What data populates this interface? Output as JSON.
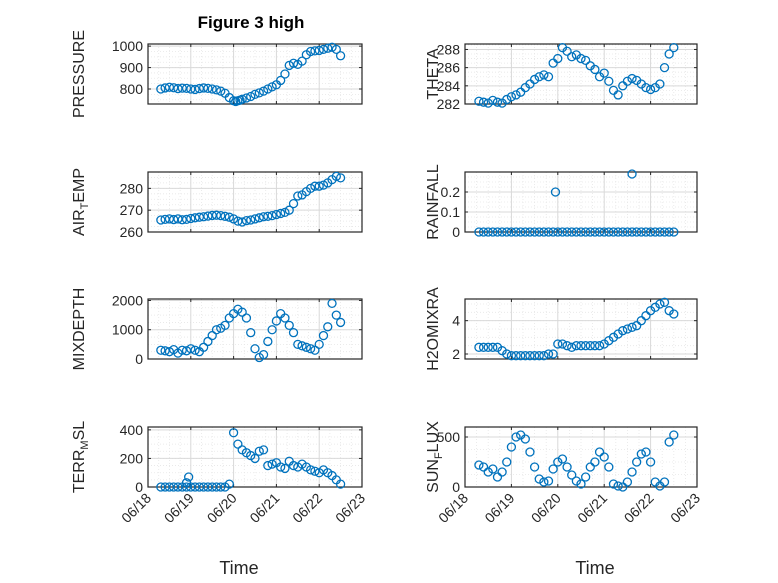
{
  "figure": {
    "title": "Figure 3 high",
    "x_axis_label": "Time",
    "x_tick_labels": [
      "06/18",
      "06/19",
      "06/20",
      "06/21",
      "06/22",
      "06/23"
    ],
    "marker_color": "#0072BD",
    "grid_color": "#d9d9d9"
  },
  "chart_data": [
    {
      "type": "scatter",
      "id": "pressure",
      "ylabel": {
        "main": "PRESSURE",
        "sub": ""
      },
      "xlim": [
        0,
        5
      ],
      "ylim": [
        730,
        1010
      ],
      "yticks": [
        800,
        900,
        1000
      ],
      "ytick_labels": [
        "800",
        "900",
        "1000"
      ],
      "x": [
        0.3,
        0.4,
        0.5,
        0.6,
        0.7,
        0.8,
        0.9,
        1.0,
        1.1,
        1.2,
        1.3,
        1.4,
        1.5,
        1.6,
        1.7,
        1.8,
        1.9,
        2.0,
        2.05,
        2.1,
        2.15,
        2.2,
        2.3,
        2.4,
        2.5,
        2.6,
        2.7,
        2.8,
        2.9,
        3.0,
        3.1,
        3.2,
        3.3,
        3.4,
        3.5,
        3.6,
        3.7,
        3.8,
        3.9,
        4.0,
        4.1,
        4.2,
        4.3,
        4.4,
        4.5
      ],
      "y": [
        800,
        805,
        808,
        806,
        802,
        804,
        803,
        800,
        798,
        802,
        805,
        803,
        800,
        796,
        790,
        780,
        760,
        745,
        742,
        745,
        748,
        752,
        758,
        765,
        775,
        782,
        790,
        800,
        810,
        820,
        840,
        870,
        910,
        920,
        915,
        930,
        960,
        975,
        978,
        980,
        985,
        990,
        995,
        985,
        955
      ]
    },
    {
      "type": "scatter",
      "id": "theta",
      "ylabel": {
        "main": "THETA",
        "sub": ""
      },
      "xlim": [
        0,
        5
      ],
      "ylim": [
        282,
        288.6
      ],
      "yticks": [
        282,
        284,
        286,
        288
      ],
      "ytick_labels": [
        "282",
        "284",
        "286",
        "288"
      ],
      "x": [
        0.3,
        0.4,
        0.5,
        0.6,
        0.7,
        0.8,
        0.9,
        1.0,
        1.1,
        1.2,
        1.3,
        1.4,
        1.5,
        1.6,
        1.7,
        1.8,
        1.9,
        2.0,
        2.1,
        2.2,
        2.3,
        2.4,
        2.5,
        2.6,
        2.7,
        2.8,
        2.9,
        3.0,
        3.1,
        3.2,
        3.3,
        3.4,
        3.5,
        3.6,
        3.7,
        3.8,
        3.9,
        4.0,
        4.1,
        4.2,
        4.3,
        4.4,
        4.5
      ],
      "y": [
        282.3,
        282.2,
        282.1,
        282.4,
        282.2,
        282.1,
        282.5,
        282.8,
        283.0,
        283.3,
        283.8,
        284.2,
        284.7,
        285.0,
        285.2,
        285.0,
        286.5,
        287.0,
        288.2,
        287.8,
        287.2,
        287.4,
        287.0,
        286.8,
        286.2,
        285.8,
        285.0,
        285.4,
        284.5,
        283.5,
        283.0,
        284.0,
        284.5,
        284.8,
        284.6,
        284.2,
        283.8,
        283.6,
        283.8,
        284.2,
        286.0,
        287.5,
        288.2
      ]
    },
    {
      "type": "scatter",
      "id": "air_temp",
      "ylabel": {
        "main": "AIR",
        "sub": "T",
        "tail": "EMP"
      },
      "xlim": [
        0,
        5
      ],
      "ylim": [
        260,
        287.5
      ],
      "yticks": [
        260,
        270,
        280
      ],
      "ytick_labels": [
        "260",
        "270",
        "280"
      ],
      "x": [
        0.3,
        0.4,
        0.5,
        0.6,
        0.7,
        0.8,
        0.9,
        1.0,
        1.1,
        1.2,
        1.3,
        1.4,
        1.5,
        1.6,
        1.7,
        1.8,
        1.9,
        2.0,
        2.1,
        2.2,
        2.3,
        2.4,
        2.5,
        2.6,
        2.7,
        2.8,
        2.9,
        3.0,
        3.1,
        3.2,
        3.3,
        3.4,
        3.5,
        3.6,
        3.7,
        3.8,
        3.9,
        4.0,
        4.1,
        4.2,
        4.3,
        4.4,
        4.5
      ],
      "y": [
        265.5,
        265.8,
        266.0,
        265.7,
        266.0,
        265.6,
        265.8,
        266.2,
        266.5,
        266.8,
        267.0,
        267.3,
        267.6,
        267.7,
        267.5,
        267.2,
        266.8,
        266.0,
        265.0,
        264.6,
        265.2,
        265.5,
        266.0,
        266.5,
        267.0,
        267.2,
        267.5,
        268.0,
        268.5,
        269.0,
        270.0,
        273.0,
        276.5,
        277.0,
        278.5,
        280.0,
        281.0,
        281.0,
        281.5,
        282.5,
        284.0,
        285.5,
        284.8
      ]
    },
    {
      "type": "scatter",
      "id": "rainfall",
      "ylabel": {
        "main": "RAINFALL",
        "sub": ""
      },
      "xlim": [
        0,
        5
      ],
      "ylim": [
        0,
        0.3
      ],
      "yticks": [
        0,
        0.1,
        0.2
      ],
      "ytick_labels": [
        "0",
        "0.1",
        "0.2"
      ],
      "x": [
        0.3,
        0.4,
        0.5,
        0.6,
        0.7,
        0.8,
        0.9,
        1.0,
        1.1,
        1.2,
        1.3,
        1.4,
        1.5,
        1.6,
        1.7,
        1.8,
        1.9,
        2.0,
        2.1,
        2.2,
        2.3,
        2.4,
        2.5,
        2.6,
        2.7,
        2.8,
        2.9,
        3.0,
        3.1,
        3.2,
        3.3,
        3.4,
        3.5,
        3.6,
        3.7,
        3.8,
        3.9,
        4.0,
        4.1,
        4.2,
        4.3,
        4.4,
        4.5,
        1.95,
        3.6
      ],
      "y": [
        0,
        0,
        0,
        0,
        0,
        0,
        0,
        0,
        0,
        0,
        0,
        0,
        0,
        0,
        0,
        0,
        0,
        0,
        0,
        0,
        0,
        0,
        0,
        0,
        0,
        0,
        0,
        0,
        0,
        0,
        0,
        0,
        0,
        0,
        0,
        0,
        0,
        0,
        0,
        0,
        0,
        0,
        0,
        0.2,
        0.29
      ]
    },
    {
      "type": "scatter",
      "id": "mixdepth",
      "ylabel": {
        "main": "MIXDEPTH",
        "sub": ""
      },
      "xlim": [
        0,
        5
      ],
      "ylim": [
        0,
        2050
      ],
      "yticks": [
        0,
        1000,
        2000
      ],
      "ytick_labels": [
        "0",
        "1000",
        "2000"
      ],
      "x": [
        0.3,
        0.4,
        0.5,
        0.6,
        0.7,
        0.8,
        0.9,
        1.0,
        1.1,
        1.2,
        1.3,
        1.4,
        1.5,
        1.6,
        1.7,
        1.8,
        1.9,
        2.0,
        2.1,
        2.2,
        2.3,
        2.4,
        2.5,
        2.6,
        2.7,
        2.8,
        2.9,
        3.0,
        3.1,
        3.2,
        3.3,
        3.4,
        3.5,
        3.6,
        3.7,
        3.8,
        3.9,
        4.0,
        4.1,
        4.2,
        4.3,
        4.4,
        4.5
      ],
      "y": [
        300,
        280,
        250,
        320,
        200,
        300,
        280,
        350,
        300,
        250,
        400,
        600,
        800,
        1000,
        1050,
        1150,
        1400,
        1550,
        1700,
        1600,
        1400,
        900,
        350,
        50,
        150,
        600,
        1000,
        1300,
        1550,
        1400,
        1150,
        900,
        500,
        450,
        400,
        350,
        300,
        500,
        800,
        1100,
        1900,
        1500,
        1250
      ]
    },
    {
      "type": "scatter",
      "id": "h2omixra",
      "ylabel": {
        "main": "H2OMIXRA",
        "sub": ""
      },
      "xlim": [
        0,
        5
      ],
      "ylim": [
        1.7,
        5.3
      ],
      "yticks": [
        2,
        4
      ],
      "ytick_labels": [
        "2",
        "4"
      ],
      "x": [
        0.3,
        0.4,
        0.5,
        0.6,
        0.7,
        0.8,
        0.9,
        1.0,
        1.1,
        1.2,
        1.3,
        1.4,
        1.5,
        1.6,
        1.7,
        1.8,
        1.9,
        2.0,
        2.1,
        2.2,
        2.3,
        2.4,
        2.5,
        2.6,
        2.7,
        2.8,
        2.9,
        3.0,
        3.1,
        3.2,
        3.3,
        3.4,
        3.5,
        3.6,
        3.7,
        3.8,
        3.9,
        4.0,
        4.1,
        4.2,
        4.3,
        4.4,
        4.5
      ],
      "y": [
        2.4,
        2.4,
        2.4,
        2.4,
        2.4,
        2.2,
        2.0,
        1.9,
        1.9,
        1.9,
        1.9,
        1.9,
        1.9,
        1.9,
        1.9,
        2.0,
        2.0,
        2.6,
        2.6,
        2.5,
        2.4,
        2.5,
        2.5,
        2.5,
        2.5,
        2.5,
        2.5,
        2.6,
        2.8,
        3.0,
        3.2,
        3.4,
        3.5,
        3.6,
        3.7,
        4.0,
        4.3,
        4.6,
        4.8,
        5.0,
        5.1,
        4.6,
        4.4
      ]
    },
    {
      "type": "scatter",
      "id": "terr_msl",
      "ylabel": {
        "main": "TERR",
        "sub": "M",
        "tail": "SL"
      },
      "xlim": [
        0,
        5
      ],
      "ylim": [
        0,
        420
      ],
      "yticks": [
        0,
        200,
        400
      ],
      "ytick_labels": [
        "0",
        "200",
        "400"
      ],
      "x": [
        0.3,
        0.4,
        0.5,
        0.6,
        0.7,
        0.8,
        0.9,
        1.0,
        1.1,
        1.2,
        1.3,
        1.4,
        1.5,
        1.6,
        1.7,
        1.8,
        1.9,
        2.0,
        2.1,
        2.2,
        2.3,
        2.4,
        2.5,
        2.6,
        2.7,
        2.8,
        2.9,
        3.0,
        3.1,
        3.2,
        3.3,
        3.4,
        3.5,
        3.6,
        3.7,
        3.8,
        3.9,
        4.0,
        4.1,
        4.2,
        4.3,
        4.4,
        4.5,
        0.95,
        0.9
      ],
      "y": [
        0,
        0,
        0,
        0,
        0,
        0,
        0,
        0,
        0,
        0,
        0,
        0,
        0,
        0,
        0,
        0,
        20,
        380,
        300,
        260,
        240,
        220,
        200,
        250,
        260,
        150,
        160,
        170,
        140,
        130,
        180,
        150,
        140,
        160,
        140,
        120,
        110,
        100,
        120,
        100,
        80,
        50,
        20,
        70,
        30
      ]
    },
    {
      "type": "scatter",
      "id": "sun_flux",
      "ylabel": {
        "main": "SUN",
        "sub": "F",
        "tail": "LUX"
      },
      "xlim": [
        0,
        5
      ],
      "ylim": [
        0,
        600
      ],
      "yticks": [
        0,
        500
      ],
      "ytick_labels": [
        "0",
        "500"
      ],
      "x": [
        0.3,
        0.4,
        0.5,
        0.6,
        0.7,
        0.8,
        0.9,
        1.0,
        1.1,
        1.2,
        1.3,
        1.4,
        1.5,
        1.6,
        1.7,
        1.8,
        1.9,
        2.0,
        2.1,
        2.2,
        2.3,
        2.4,
        2.5,
        2.6,
        2.7,
        2.8,
        2.9,
        3.0,
        3.1,
        3.2,
        3.3,
        3.4,
        3.5,
        3.6,
        3.7,
        3.8,
        3.9,
        4.0,
        4.1,
        4.2,
        4.3,
        4.4,
        4.5
      ],
      "y": [
        220,
        200,
        150,
        180,
        100,
        150,
        250,
        400,
        500,
        520,
        480,
        350,
        200,
        80,
        50,
        60,
        180,
        250,
        280,
        200,
        120,
        60,
        30,
        100,
        200,
        250,
        350,
        300,
        200,
        30,
        10,
        0,
        50,
        150,
        250,
        330,
        350,
        250,
        50,
        10,
        50,
        450,
        520
      ]
    }
  ]
}
